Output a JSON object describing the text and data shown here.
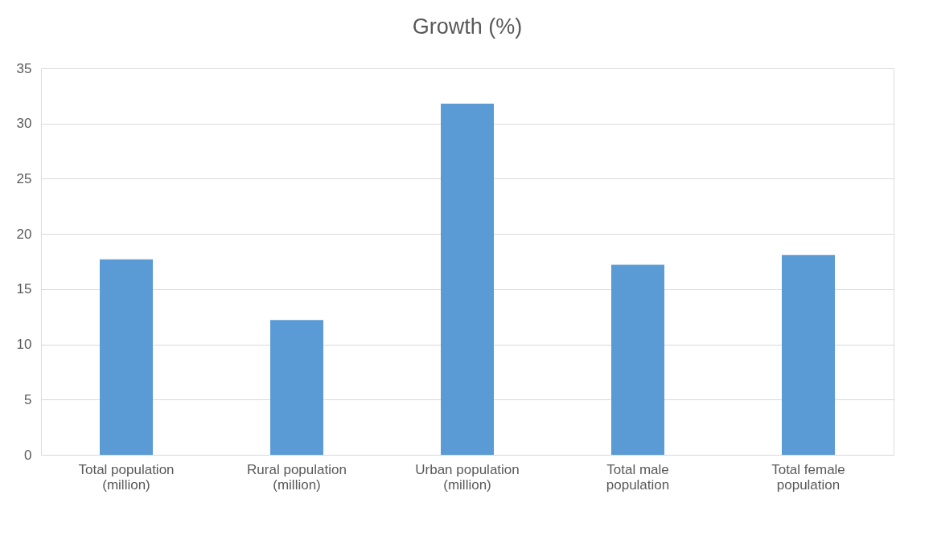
{
  "chart_data": {
    "type": "bar",
    "title": "Growth (%)",
    "categories": [
      "Total population\n(million)",
      "Rural population\n(million)",
      "Urban population\n(million)",
      "Total male\npopulation",
      "Total female\npopulation"
    ],
    "values": [
      17.7,
      12.2,
      31.8,
      17.2,
      18.1
    ],
    "color": "#5b9bd5",
    "ylim": [
      0,
      35
    ],
    "yticks": [
      0,
      5,
      10,
      15,
      20,
      25,
      30,
      35
    ],
    "grid": "y"
  }
}
